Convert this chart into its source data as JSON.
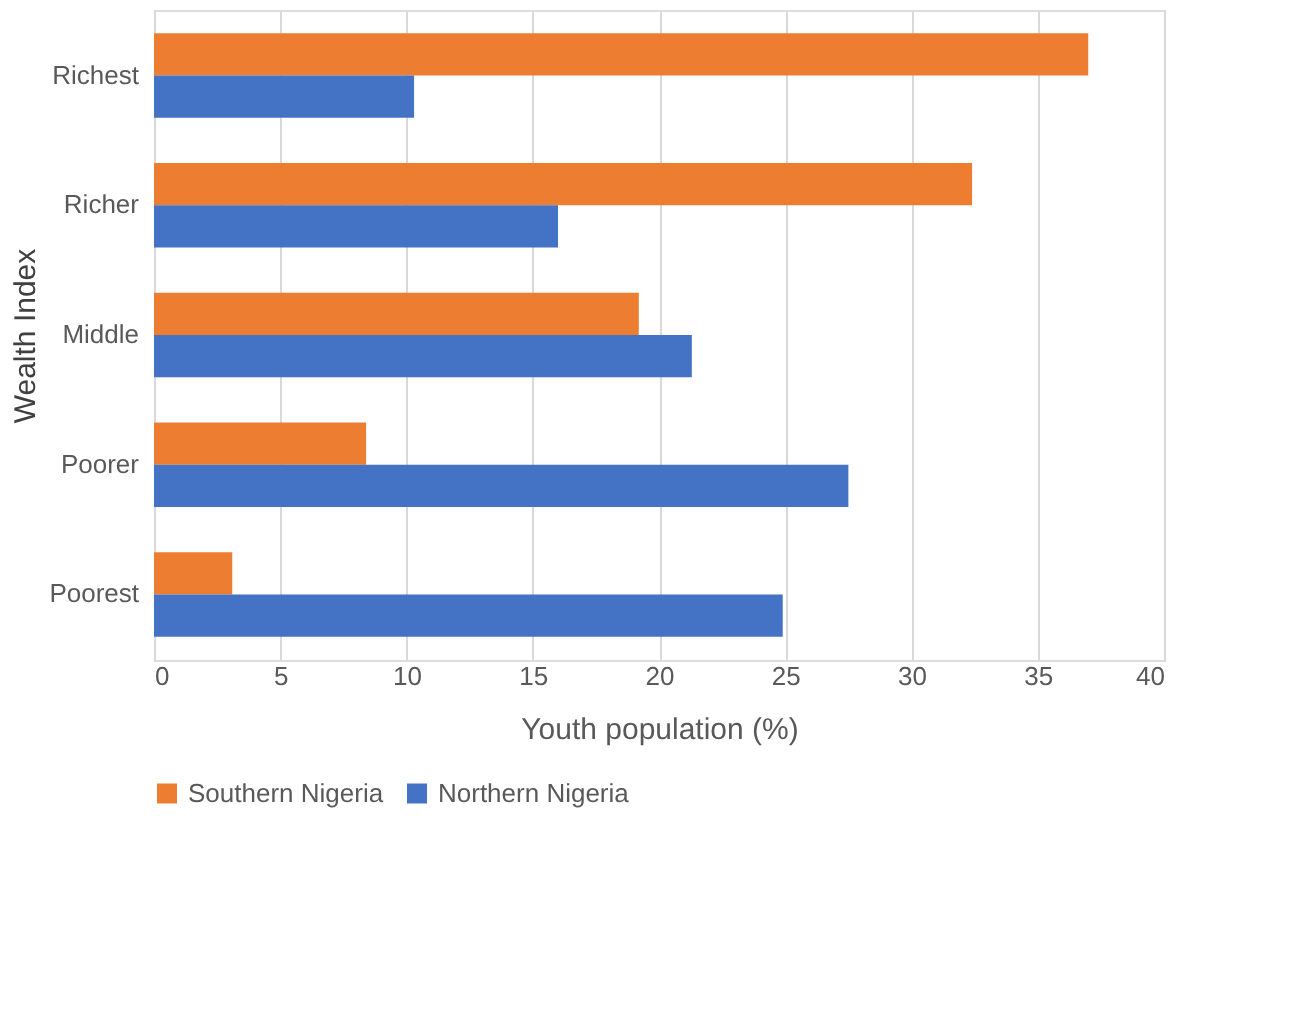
{
  "chart_data": {
    "type": "bar",
    "orientation": "horizontal",
    "xlabel": "Youth population (%)",
    "ylabel": "Wealth Index",
    "categories": [
      "Richest",
      "Richer",
      "Middle",
      "Poorer",
      "Poorest"
    ],
    "series": [
      {
        "name": "Southern Nigeria",
        "color": "#ed7d31",
        "values": [
          37.0,
          32.4,
          19.2,
          8.4,
          3.1
        ]
      },
      {
        "name": "Northern Nigeria",
        "color": "#4472c4",
        "values": [
          10.3,
          16.0,
          21.3,
          27.5,
          24.9
        ]
      }
    ],
    "xlim": [
      0,
      40
    ],
    "xticks": [
      0,
      5,
      10,
      15,
      20,
      25,
      30,
      35,
      40
    ],
    "grid": "x",
    "legend": "bottom"
  }
}
